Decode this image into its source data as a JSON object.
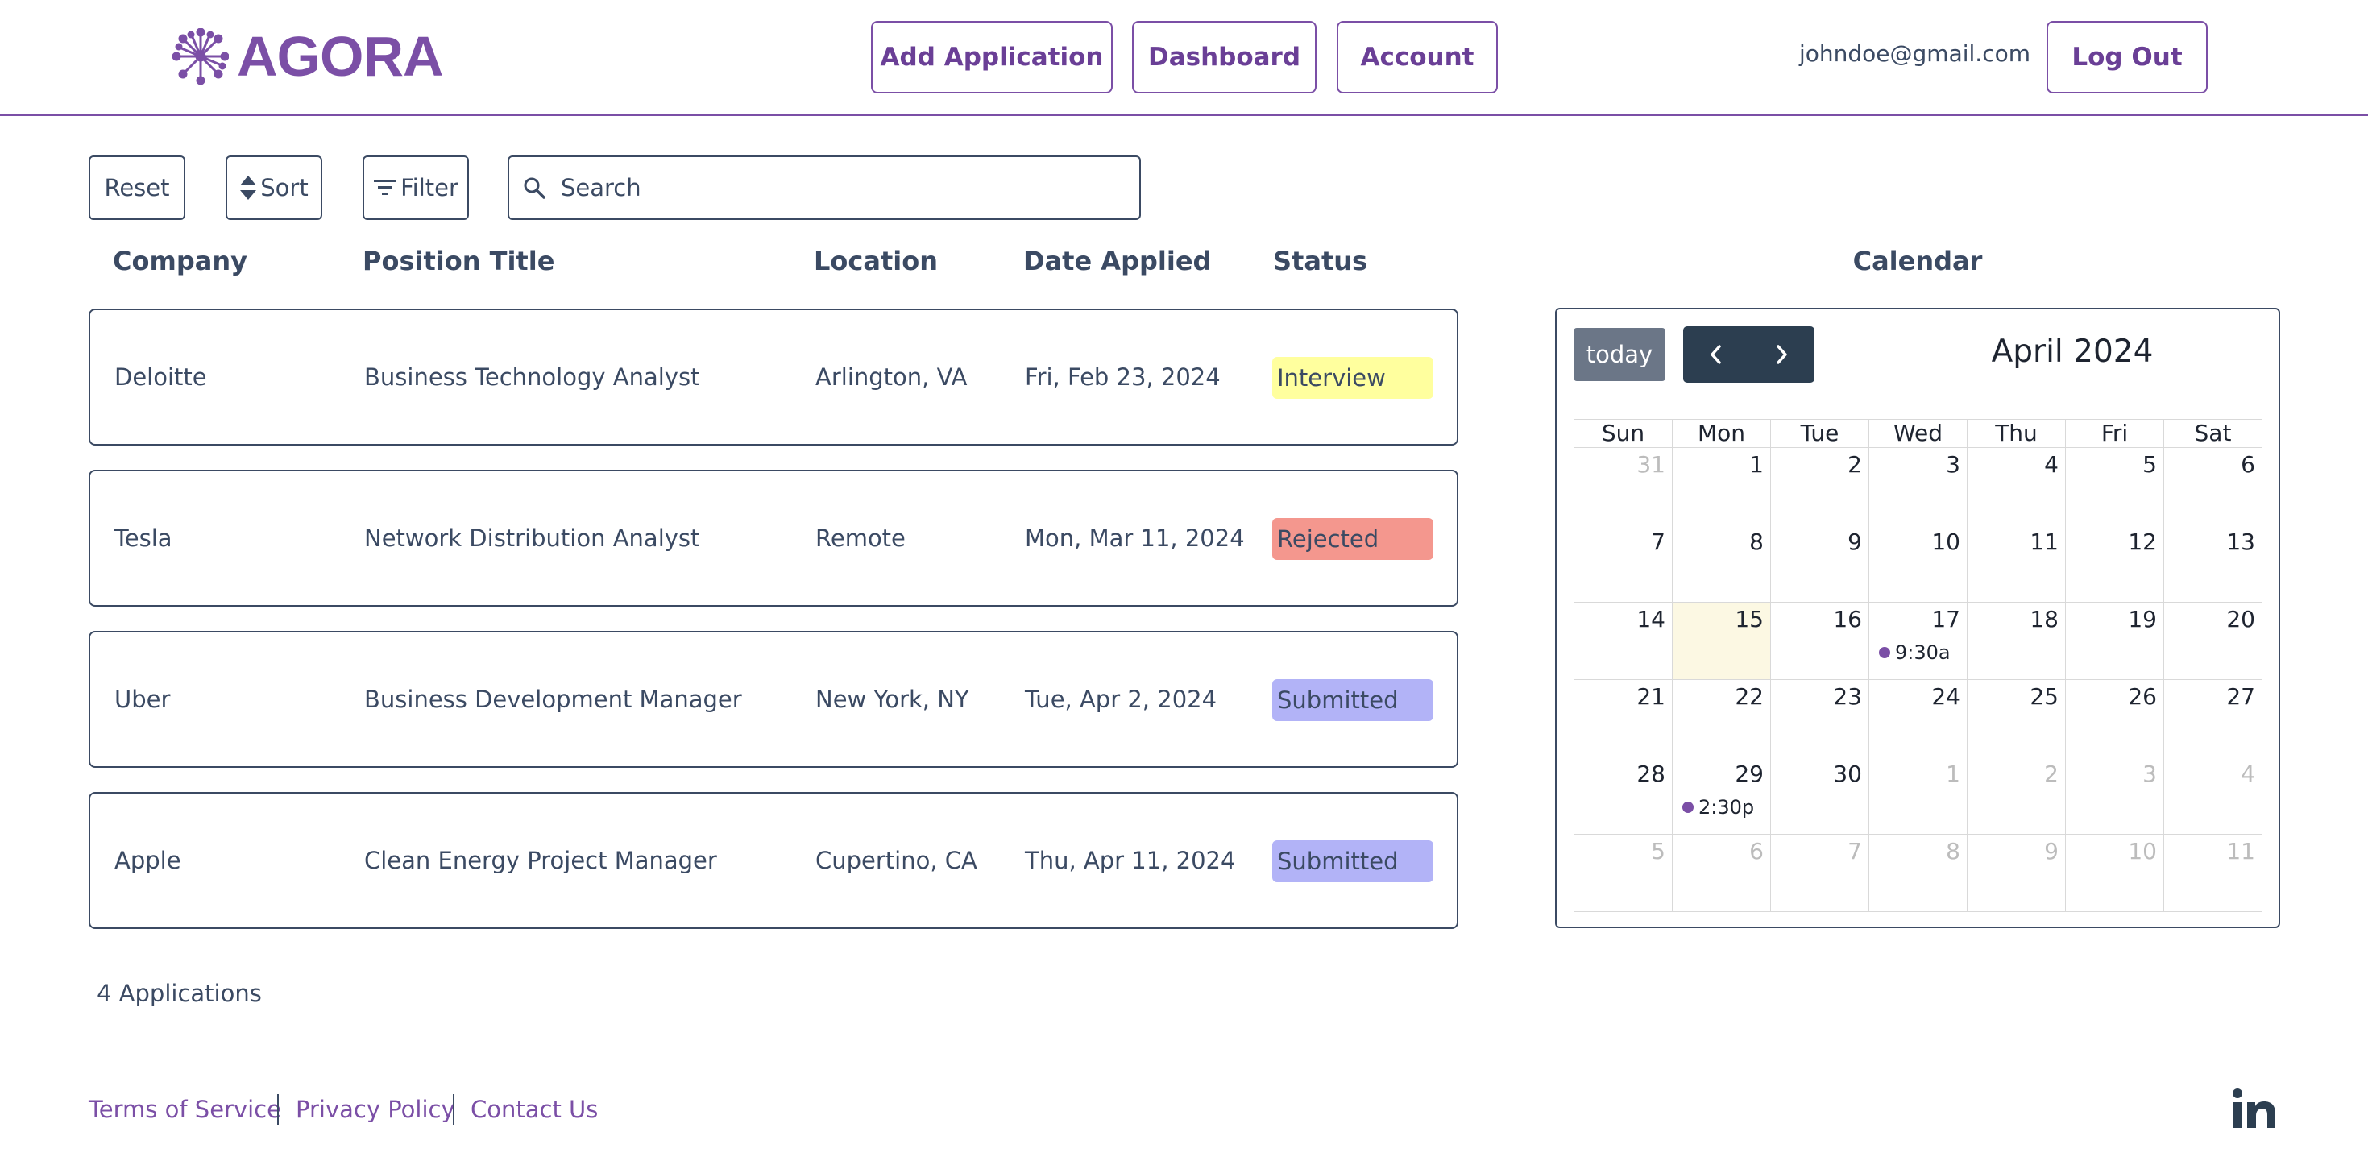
{
  "header": {
    "logo_text": "AGORA",
    "nav": {
      "add_application": "Add Application",
      "dashboard": "Dashboard",
      "account": "Account"
    },
    "user_email": "johndoe@gmail.com",
    "logout": "Log Out"
  },
  "toolbar": {
    "reset": "Reset",
    "sort": "Sort",
    "filter": "Filter",
    "search_placeholder": "Search"
  },
  "table": {
    "columns": [
      "Company",
      "Position Title",
      "Location",
      "Date Applied",
      "Status"
    ],
    "rows": [
      {
        "company": "Deloitte",
        "position": "Business Technology Analyst",
        "location": "Arlington, VA",
        "date": "Fri, Feb 23, 2024",
        "status": "Interview",
        "status_color": "#ffff9e"
      },
      {
        "company": "Tesla",
        "position": "Network Distribution Analyst",
        "location": "Remote",
        "date": "Mon, Mar 11, 2024",
        "status": "Rejected",
        "status_color": "#f4978e"
      },
      {
        "company": "Uber",
        "position": "Business Development Manager",
        "location": "New York, NY",
        "date": "Tue, Apr 2, 2024",
        "status": "Submitted",
        "status_color": "#b2b3f7"
      },
      {
        "company": "Apple",
        "position": "Clean Energy Project Manager",
        "location": "Cupertino, CA",
        "date": "Thu, Apr 11, 2024",
        "status": "Submitted",
        "status_color": "#b2b3f7"
      }
    ],
    "count_label": "4 Applications"
  },
  "calendar": {
    "title": "Calendar",
    "today_label": "today",
    "month_label": "April 2024",
    "weekdays": [
      "Sun",
      "Mon",
      "Tue",
      "Wed",
      "Thu",
      "Fri",
      "Sat"
    ],
    "weeks": [
      [
        {
          "d": "31",
          "other": true
        },
        {
          "d": "1"
        },
        {
          "d": "2"
        },
        {
          "d": "3"
        },
        {
          "d": "4"
        },
        {
          "d": "5"
        },
        {
          "d": "6"
        }
      ],
      [
        {
          "d": "7"
        },
        {
          "d": "8"
        },
        {
          "d": "9"
        },
        {
          "d": "10"
        },
        {
          "d": "11"
        },
        {
          "d": "12"
        },
        {
          "d": "13"
        }
      ],
      [
        {
          "d": "14"
        },
        {
          "d": "15",
          "today": true
        },
        {
          "d": "16"
        },
        {
          "d": "17",
          "event": "9:30a"
        },
        {
          "d": "18"
        },
        {
          "d": "19"
        },
        {
          "d": "20"
        }
      ],
      [
        {
          "d": "21"
        },
        {
          "d": "22"
        },
        {
          "d": "23"
        },
        {
          "d": "24"
        },
        {
          "d": "25"
        },
        {
          "d": "26"
        },
        {
          "d": "27"
        }
      ],
      [
        {
          "d": "28"
        },
        {
          "d": "29",
          "event": "2:30p"
        },
        {
          "d": "30"
        },
        {
          "d": "1",
          "other": true
        },
        {
          "d": "2",
          "other": true
        },
        {
          "d": "3",
          "other": true
        },
        {
          "d": "4",
          "other": true
        }
      ],
      [
        {
          "d": "5",
          "other": true
        },
        {
          "d": "6",
          "other": true
        },
        {
          "d": "7",
          "other": true
        },
        {
          "d": "8",
          "other": true
        },
        {
          "d": "9",
          "other": true
        },
        {
          "d": "10",
          "other": true
        },
        {
          "d": "11",
          "other": true
        }
      ]
    ],
    "event_color": "#7b4fa6"
  },
  "footer": {
    "terms": "Terms of Service",
    "privacy": "Privacy Policy",
    "contact": "Contact Us",
    "social_icon": "linkedin-icon"
  },
  "colors": {
    "brand_purple": "#7b4fa6",
    "text_slate": "#3b4a63"
  }
}
